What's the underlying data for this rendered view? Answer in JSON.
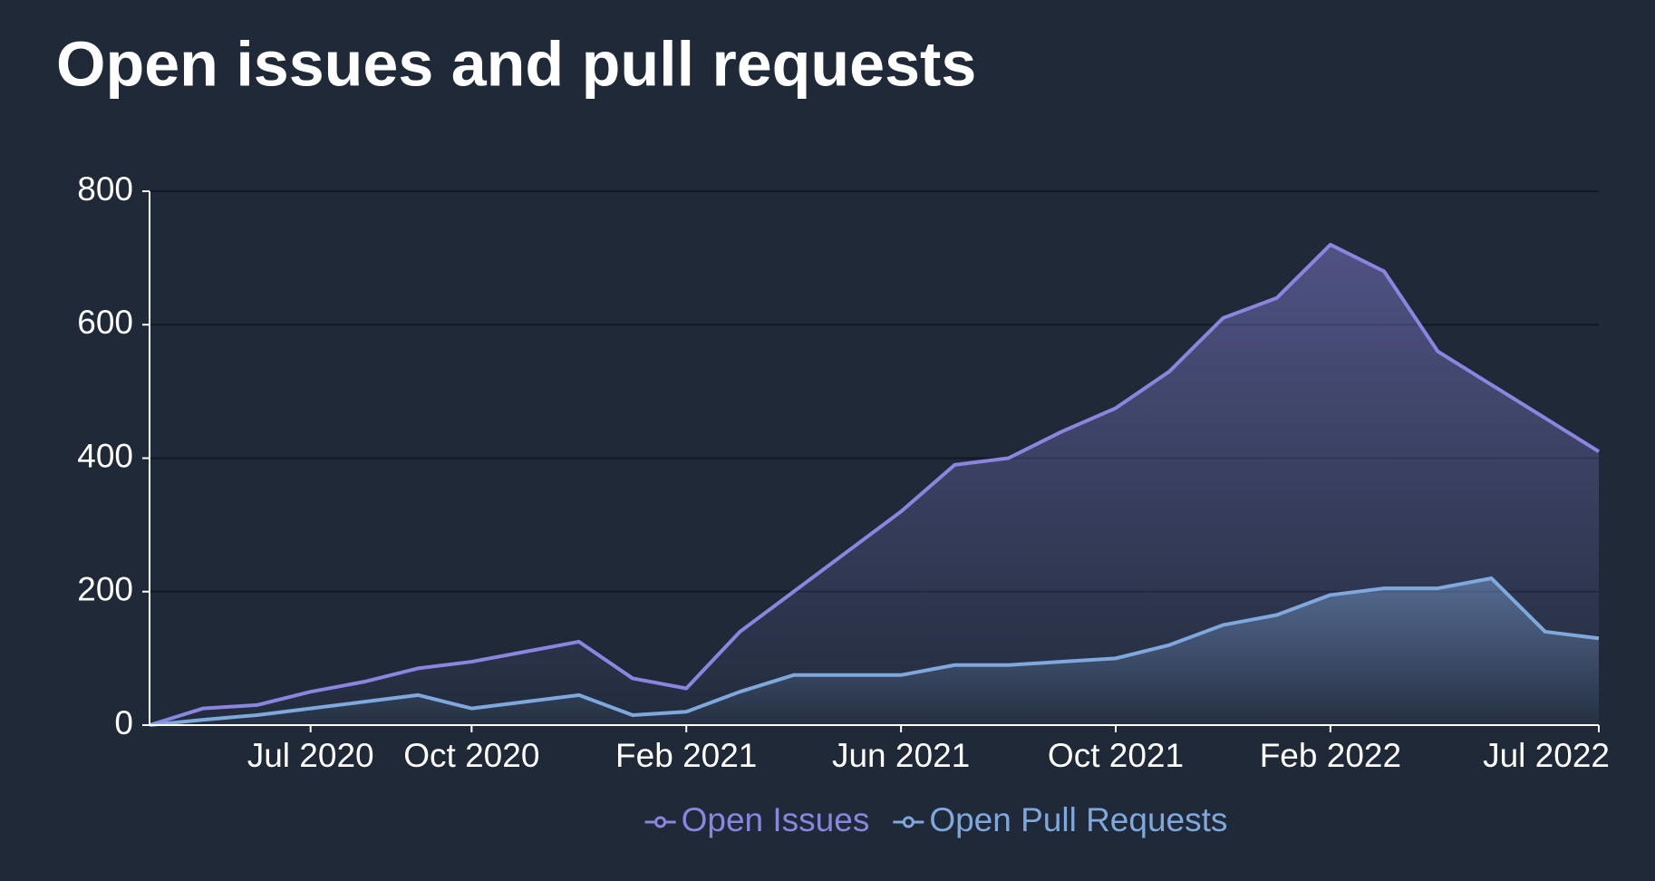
{
  "chart_data": {
    "type": "line",
    "title": "Open issues and pull requests",
    "x": [
      "2020-04",
      "2020-05",
      "2020-06",
      "2020-07",
      "2020-08",
      "2020-09",
      "2020-10",
      "2020-11",
      "2020-12",
      "2021-01",
      "2021-02",
      "2021-03",
      "2021-04",
      "2021-05",
      "2021-06",
      "2021-07",
      "2021-08",
      "2021-09",
      "2021-10",
      "2021-11",
      "2021-12",
      "2022-01",
      "2022-02",
      "2022-03",
      "2022-04",
      "2022-05",
      "2022-06",
      "2022-07"
    ],
    "series": [
      {
        "name": "Open Issues",
        "color": "#8b85e0",
        "values": [
          0,
          25,
          30,
          50,
          65,
          85,
          95,
          110,
          125,
          70,
          55,
          140,
          200,
          260,
          320,
          390,
          400,
          440,
          475,
          530,
          610,
          640,
          720,
          680,
          560,
          510,
          460,
          410
        ]
      },
      {
        "name": "Open Pull Requests",
        "color": "#7fa8dd",
        "values": [
          0,
          8,
          15,
          25,
          35,
          45,
          25,
          35,
          45,
          15,
          20,
          50,
          75,
          75,
          75,
          90,
          90,
          95,
          100,
          120,
          150,
          165,
          195,
          205,
          205,
          220,
          140,
          130
        ]
      }
    ],
    "xlim": [
      "2020-04",
      "2022-07"
    ],
    "xticks": [
      {
        "value": "2020-07",
        "label": "Jul 2020"
      },
      {
        "value": "2020-10",
        "label": "Oct 2020"
      },
      {
        "value": "2021-02",
        "label": "Feb 2021"
      },
      {
        "value": "2021-06",
        "label": "Jun 2021"
      },
      {
        "value": "2021-10",
        "label": "Oct 2021"
      },
      {
        "value": "2022-02",
        "label": "Feb 2022"
      },
      {
        "value": "2022-07",
        "label": "Jul 2022"
      }
    ],
    "ylim": [
      0,
      800
    ],
    "yticks": [
      0,
      200,
      400,
      600,
      800
    ],
    "grid": true,
    "legend": "bottom"
  }
}
